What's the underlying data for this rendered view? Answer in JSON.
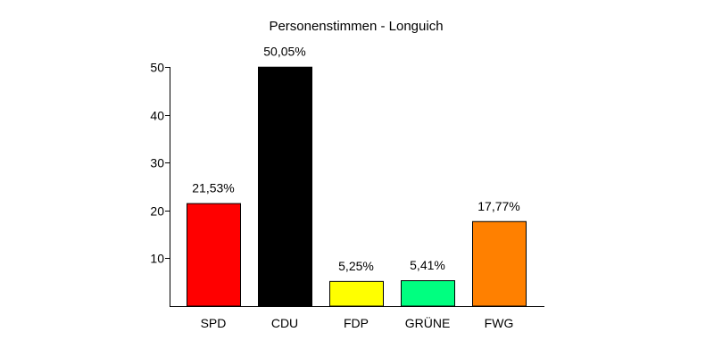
{
  "chart_data": {
    "type": "bar",
    "title": "Personenstimmen - Longuich",
    "xlabel": "",
    "ylabel": "",
    "ylim": [
      0,
      50
    ],
    "yticks": [
      10,
      20,
      30,
      40,
      50
    ],
    "ytick_labels": [
      "10",
      "20",
      "30",
      "40",
      "50"
    ],
    "grid": false,
    "categories": [
      "SPD",
      "CDU",
      "FDP",
      "GRÜNE",
      "FWG"
    ],
    "values": [
      21.53,
      50.05,
      5.25,
      5.41,
      17.77
    ],
    "data_labels": [
      "21,53%",
      "50,05%",
      "5,25%",
      "5,41%",
      "17,77%"
    ],
    "colors": [
      "#ff0000",
      "#000000",
      "#ffff00",
      "#00ff80",
      "#ff8000"
    ]
  }
}
